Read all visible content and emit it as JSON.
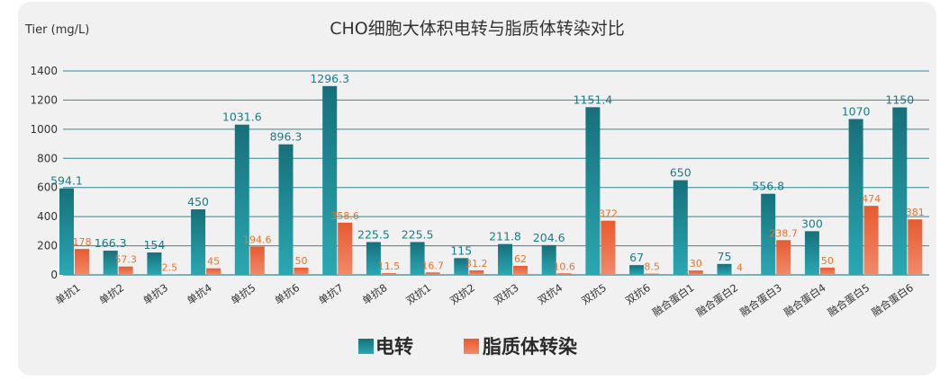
{
  "chart_data": {
    "type": "bar",
    "title": "CHO细胞大体积电转与脂质体转染对比",
    "ylabel": "Tier (mg/L)",
    "xlabel": "",
    "ylim": [
      0,
      1400
    ],
    "yticks": [
      0,
      200,
      400,
      600,
      800,
      1000,
      1200,
      1400
    ],
    "grid": true,
    "legend_position": "bottom-center",
    "categories": [
      "单抗1",
      "单抗2",
      "单抗3",
      "单抗4",
      "单抗5",
      "单抗6",
      "单抗7",
      "单抗8",
      "双抗1",
      "双抗2",
      "双抗3",
      "双抗4",
      "双抗5",
      "双抗6",
      "融合蛋白1",
      "融合蛋白2",
      "融合蛋白3",
      "融合蛋白4",
      "融合蛋白5",
      "融合蛋白6"
    ],
    "series": [
      {
        "name": "电转",
        "color": "#1a7d88",
        "values": [
          594.1,
          166.3,
          154,
          450,
          1031.6,
          896.3,
          1296.3,
          225.5,
          225.5,
          115,
          211.8,
          204.6,
          1151.4,
          67,
          650,
          75,
          556.8,
          300,
          1070,
          1150
        ],
        "labels": [
          "594.1",
          "166.3",
          "154",
          "450",
          "1031.6",
          "896.3",
          "1296.3",
          "225.5",
          "225.5",
          "115",
          "211.8",
          "204.6",
          "1151.4",
          "67",
          "650",
          "75",
          "556.8",
          "300",
          "1070",
          "1150"
        ]
      },
      {
        "name": "脂质体转染",
        "color": "#e8623a",
        "values": [
          178,
          57.3,
          2.5,
          45,
          194.6,
          50,
          358.6,
          11.5,
          16.7,
          31.2,
          62,
          10.6,
          372,
          8.5,
          30,
          4,
          238.7,
          50,
          474,
          381
        ],
        "labels": [
          "178",
          "57.3",
          "2.5",
          "45",
          "194.6",
          "50",
          "358.6",
          "11.5",
          "16.7",
          "31.2",
          "62",
          "10.6",
          "372",
          "8.5",
          "30",
          "4",
          "238.7",
          "50",
          "474",
          "381"
        ]
      }
    ]
  }
}
